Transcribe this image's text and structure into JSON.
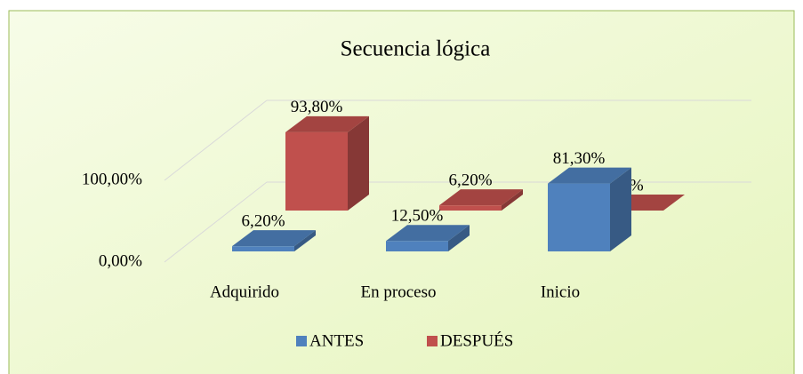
{
  "chart_data": {
    "type": "bar3d",
    "title": "Secuencia lógica",
    "categories": [
      "Adquirido",
      "En proceso",
      "Inicio"
    ],
    "series": [
      {
        "name": "ANTES",
        "color": "#4f81bd",
        "values": [
          6.2,
          12.5,
          81.3
        ],
        "value_labels": [
          "6,20%",
          "12,50%",
          "81,30%"
        ]
      },
      {
        "name": "DESPUÉS",
        "color": "#c0504d",
        "values": [
          93.8,
          6.2,
          0
        ],
        "value_labels": [
          "93,80%",
          "6,20%",
          "0%"
        ]
      }
    ],
    "ylim": [
      0,
      100
    ],
    "yticks": [
      {
        "value": 0,
        "label": "0,00%"
      },
      {
        "value": 100,
        "label": "100,00%"
      }
    ],
    "grid": true,
    "legend": "bottom"
  }
}
